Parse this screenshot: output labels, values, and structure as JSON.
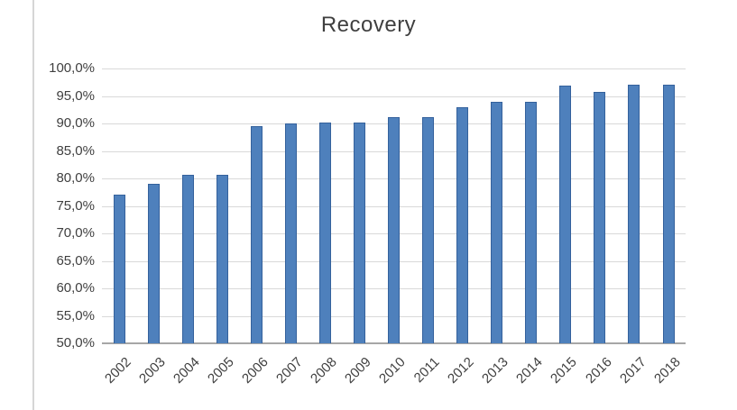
{
  "page": {
    "background": "#ffffff",
    "left_border_color": "#d6d6d6"
  },
  "chart_data": {
    "type": "bar",
    "title": "Recovery",
    "categories": [
      "2002",
      "2003",
      "2004",
      "2005",
      "2006",
      "2007",
      "2008",
      "2009",
      "2010",
      "2011",
      "2012",
      "2013",
      "2014",
      "2015",
      "2016",
      "2017",
      "2018"
    ],
    "values": [
      77.0,
      79.0,
      80.7,
      80.7,
      89.5,
      90.0,
      90.2,
      90.2,
      91.2,
      91.2,
      92.9,
      94.0,
      94.0,
      96.9,
      95.8,
      97.1,
      97.1
    ],
    "value_suffix": "%",
    "xlabel": "",
    "ylabel": "",
    "ylim": [
      50,
      100
    ],
    "y_tick_values": [
      100,
      95,
      90,
      85,
      80,
      75,
      70,
      65,
      60,
      55,
      50
    ],
    "y_tick_labels": [
      "100,0%",
      "95,0%",
      "90,0%",
      "85,0%",
      "80,0%",
      "75,0%",
      "70,0%",
      "65,0%",
      "60,0%",
      "55,0%",
      "50,0%"
    ],
    "grid": true,
    "legend": null,
    "colors": {
      "bar_fill": "#4e80bc",
      "bar_border": "#34619c",
      "gridline": "#d9d9d9",
      "axis_line": "#a6a6a6",
      "text": "#3f3f3f"
    }
  }
}
